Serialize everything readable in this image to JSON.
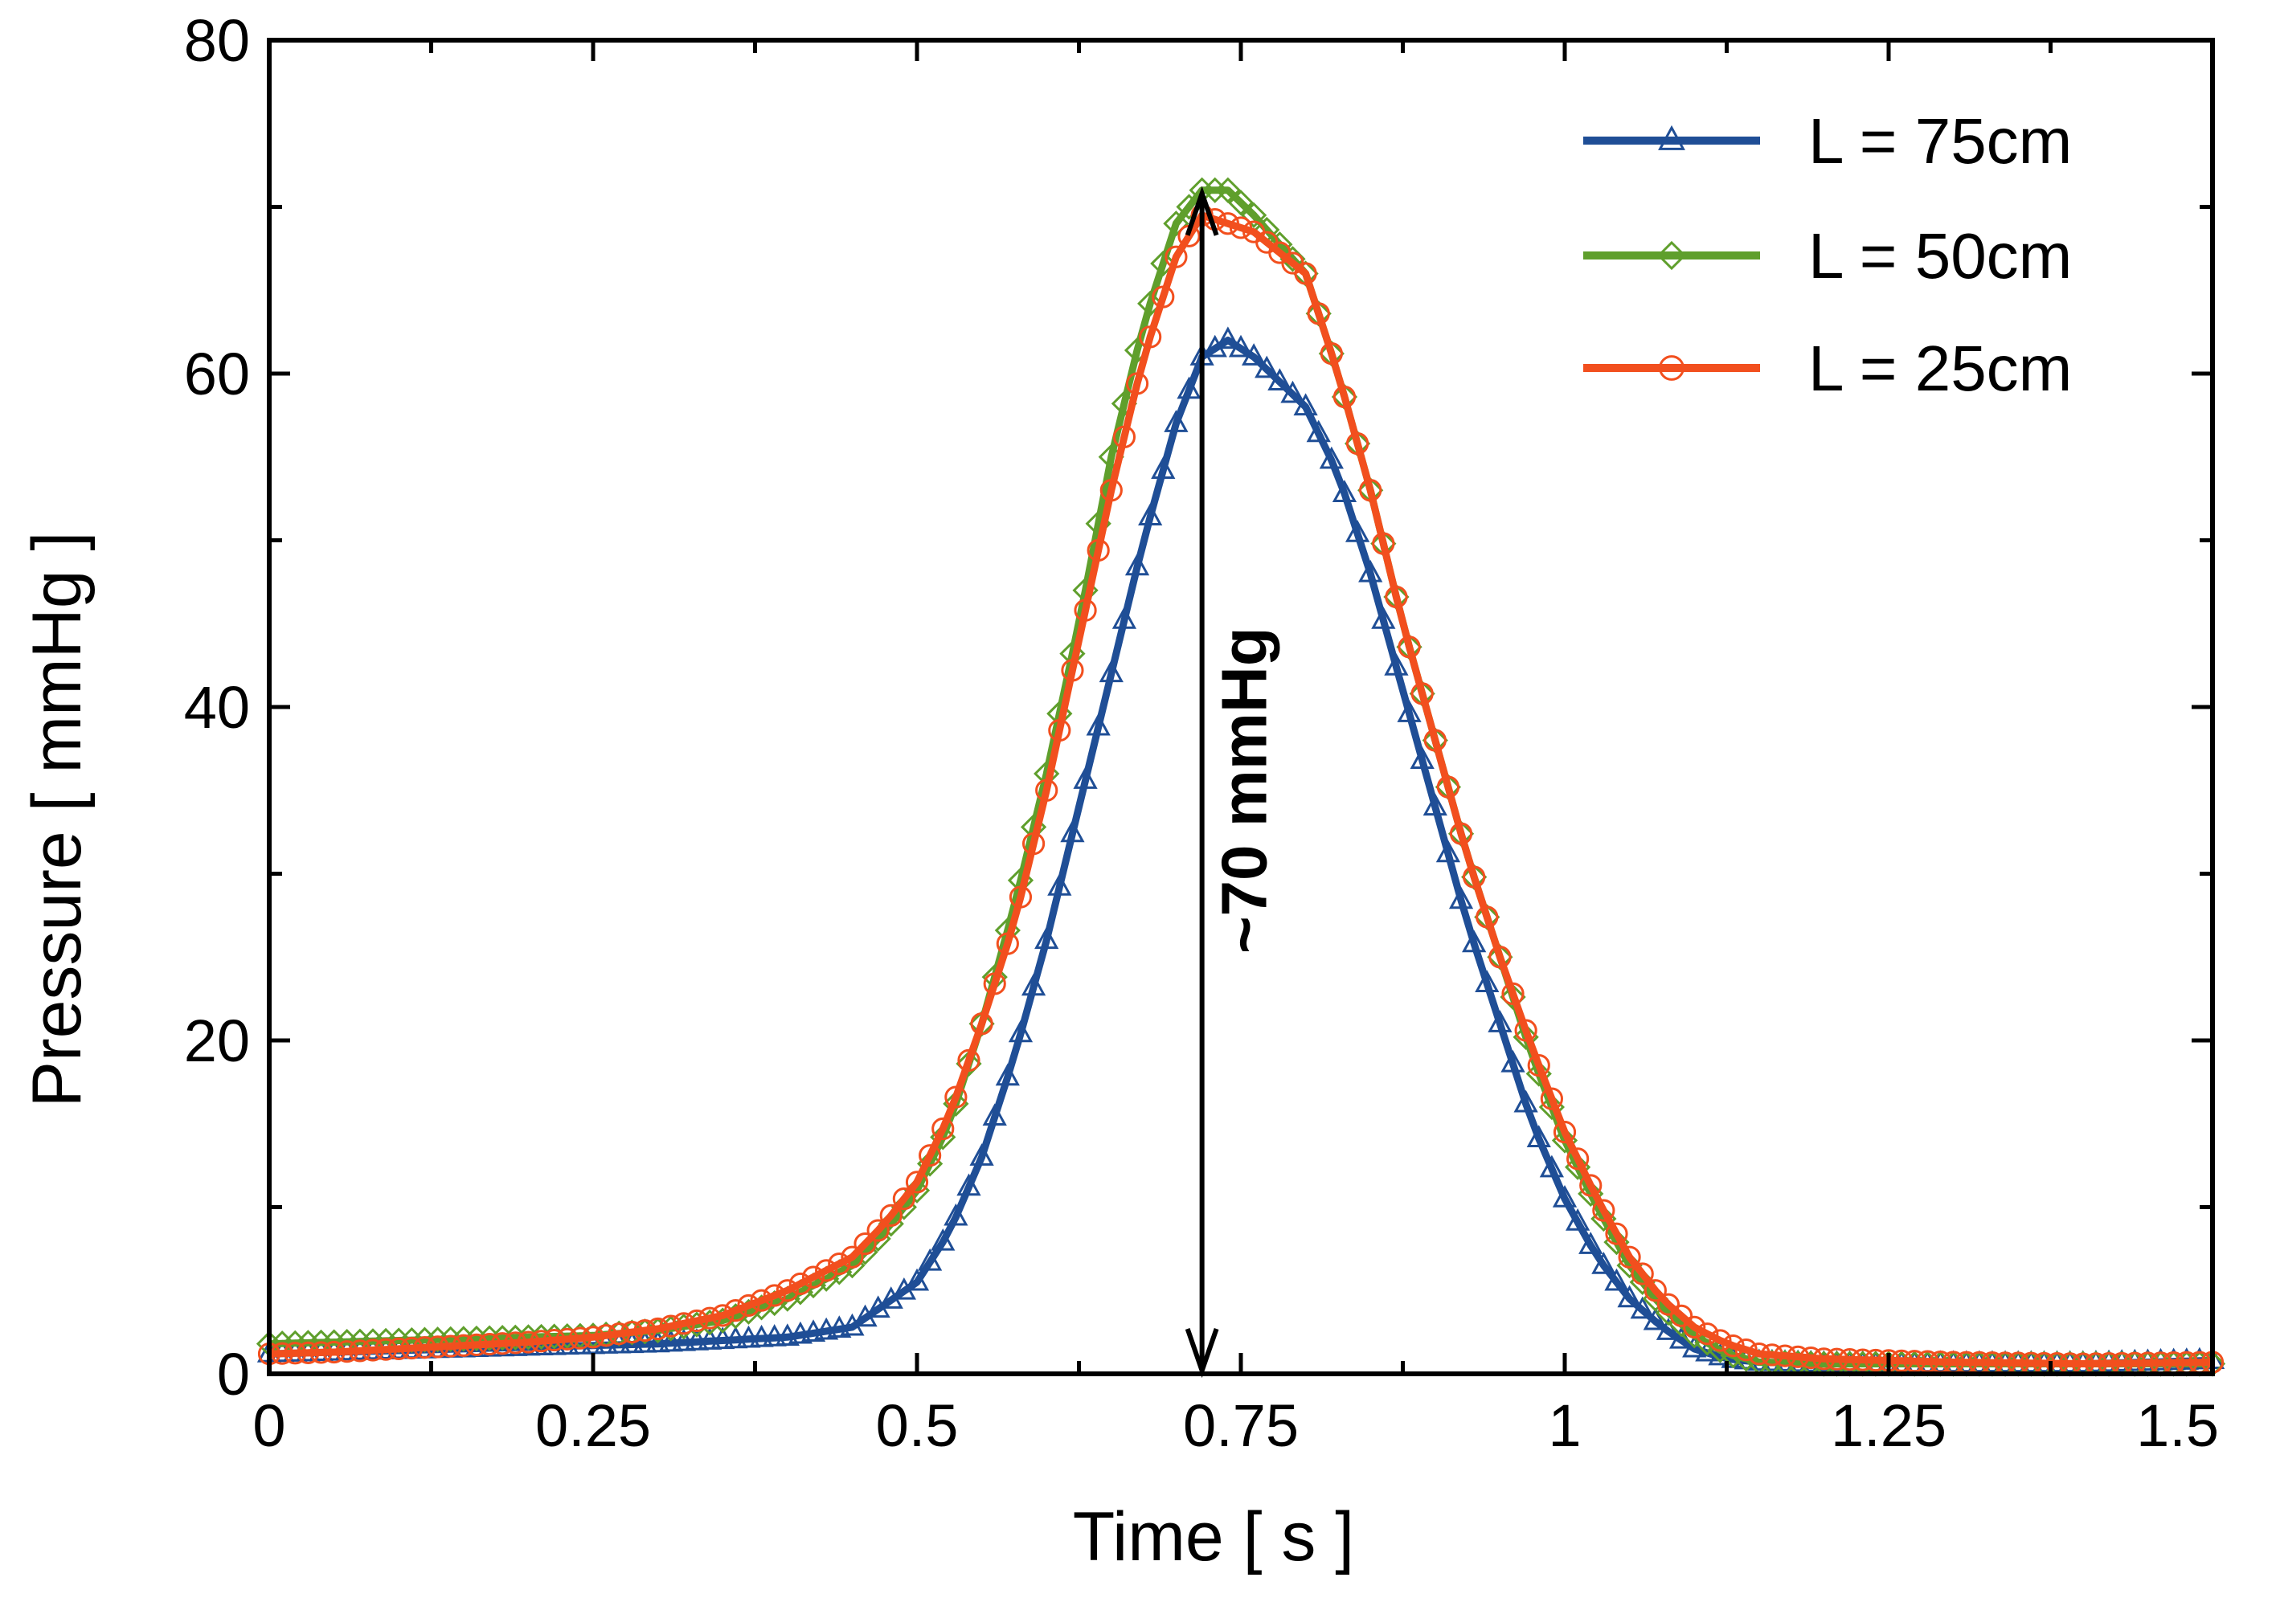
{
  "chart_data": {
    "type": "line",
    "title": "",
    "xlabel": "Time [ s ]",
    "ylabel": "Pressure [ mmHg ]",
    "xlim": [
      0,
      1.5
    ],
    "ylim": [
      0,
      80
    ],
    "x_ticks": [
      0,
      0.25,
      0.5,
      0.75,
      1,
      1.25,
      1.5
    ],
    "x_tick_labels": [
      "0",
      "0.25",
      "0.5",
      "0.75",
      "1",
      "1.25",
      "1.5"
    ],
    "y_ticks": [
      0,
      20,
      40,
      60,
      80
    ],
    "y_tick_labels": [
      "0",
      "20",
      "40",
      "60",
      "80"
    ],
    "x_minor_ticks": [
      0.125,
      0.375,
      0.625,
      0.875,
      1.125,
      1.375
    ],
    "y_minor_ticks": [
      10,
      30,
      50,
      70
    ],
    "grid": false,
    "legend_position": "top-right",
    "series": [
      {
        "name": "L = 75cm",
        "color": "#1f4e96",
        "marker": "triangle",
        "x": [
          0,
          0.05,
          0.1,
          0.15,
          0.2,
          0.25,
          0.3,
          0.35,
          0.4,
          0.45,
          0.5,
          0.525,
          0.55,
          0.575,
          0.6,
          0.625,
          0.65,
          0.675,
          0.7,
          0.72,
          0.74,
          0.76,
          0.8,
          0.825,
          0.85,
          0.875,
          0.9,
          0.925,
          0.95,
          0.975,
          1,
          1.025,
          1.05,
          1.075,
          1.1,
          1.125,
          1.15,
          1.2,
          1.3,
          1.4,
          1.5
        ],
        "values": [
          1.2,
          1.3,
          1.4,
          1.5,
          1.6,
          1.7,
          1.8,
          2.0,
          2.2,
          2.8,
          5.5,
          8.5,
          13,
          19,
          26,
          34,
          42,
          50,
          57,
          61,
          62,
          61,
          58,
          54,
          48,
          41,
          34,
          27,
          21,
          15,
          10.5,
          7,
          4.5,
          2.8,
          1.5,
          0.9,
          0.7,
          0.6,
          0.6,
          0.6,
          0.8
        ]
      },
      {
        "name": "L = 50cm",
        "color": "#5f9f2c",
        "marker": "diamond",
        "x": [
          0,
          0.05,
          0.1,
          0.15,
          0.2,
          0.25,
          0.3,
          0.35,
          0.4,
          0.45,
          0.475,
          0.5,
          0.525,
          0.55,
          0.575,
          0.6,
          0.625,
          0.65,
          0.675,
          0.7,
          0.72,
          0.74,
          0.76,
          0.8,
          0.825,
          0.85,
          0.875,
          0.9,
          0.925,
          0.95,
          0.975,
          1,
          1.025,
          1.05,
          1.075,
          1.1,
          1.125,
          1.15,
          1.2,
          1.3,
          1.4,
          1.5
        ],
        "values": [
          1.8,
          1.9,
          2.0,
          2.1,
          2.2,
          2.3,
          2.6,
          3.2,
          4.5,
          6.5,
          8.5,
          11,
          15,
          21,
          28,
          36,
          45,
          55,
          63,
          69,
          71,
          71,
          69.5,
          66,
          60,
          53,
          45,
          38,
          31,
          25,
          19,
          14,
          10,
          6.5,
          4,
          2.3,
          1.2,
          0.7,
          0.6,
          0.6,
          0.6,
          0.6
        ]
      },
      {
        "name": "L = 25cm",
        "color": "#f24f1e",
        "marker": "circle",
        "x": [
          0,
          0.05,
          0.1,
          0.15,
          0.2,
          0.25,
          0.3,
          0.35,
          0.4,
          0.45,
          0.475,
          0.5,
          0.525,
          0.55,
          0.575,
          0.6,
          0.625,
          0.65,
          0.675,
          0.7,
          0.72,
          0.74,
          0.76,
          0.8,
          0.825,
          0.85,
          0.875,
          0.9,
          0.925,
          0.95,
          0.975,
          1,
          1.025,
          1.05,
          1.075,
          1.1,
          1.125,
          1.15,
          1.2,
          1.3,
          1.4,
          1.5
        ],
        "values": [
          1.2,
          1.3,
          1.5,
          1.7,
          1.9,
          2.2,
          2.7,
          3.5,
          5,
          7,
          9,
          11.5,
          15.5,
          21,
          27,
          35,
          44,
          53,
          61,
          67,
          69.5,
          69,
          68.5,
          66,
          60,
          53,
          45,
          38,
          31,
          25,
          19.5,
          14.5,
          10.5,
          7,
          4.5,
          2.8,
          1.8,
          1.2,
          0.9,
          0.7,
          0.6,
          0.7
        ]
      }
    ],
    "annotations": [
      {
        "text": "~70 mmHg",
        "x": 0.72,
        "y_from": 0,
        "y_to": 71,
        "orientation": "vertical"
      }
    ]
  }
}
